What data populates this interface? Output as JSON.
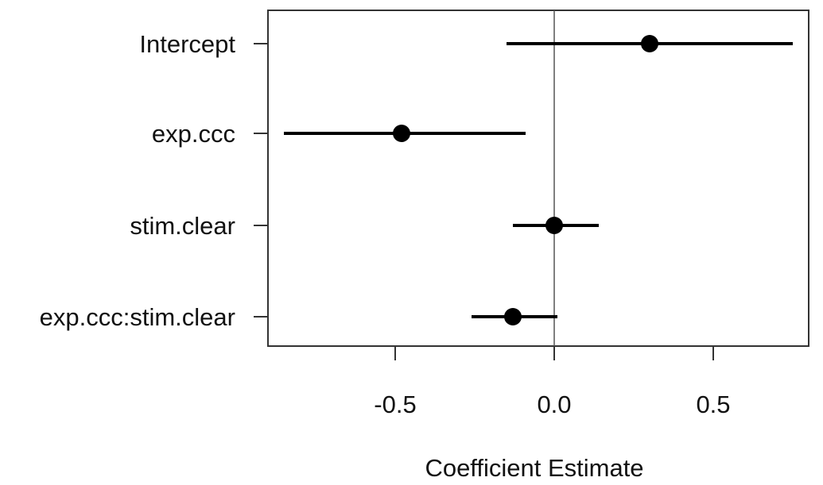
{
  "chart_data": {
    "type": "scatter",
    "title": "",
    "xlabel": "Coefficient Estimate",
    "ylabel": "",
    "xlim": [
      -0.9,
      0.8
    ],
    "x_ticks": [
      -0.5,
      0.0,
      0.5
    ],
    "x_tick_labels": [
      "-0.5",
      "0.0",
      "0.5"
    ],
    "reference_line_x": 0.0,
    "grid": false,
    "legend": "none",
    "colors": {
      "marker": "#000000",
      "interval": "#000000",
      "frame": "#333333",
      "reference": "#555555"
    },
    "categories": [
      "Intercept",
      "exp.ccc",
      "stim.clear",
      "exp.ccc:stim.clear"
    ],
    "estimates": [
      0.3,
      -0.48,
      0.0,
      -0.13
    ],
    "lower": [
      -0.15,
      -0.85,
      -0.13,
      -0.26
    ],
    "upper": [
      0.75,
      -0.09,
      0.14,
      0.01
    ]
  }
}
